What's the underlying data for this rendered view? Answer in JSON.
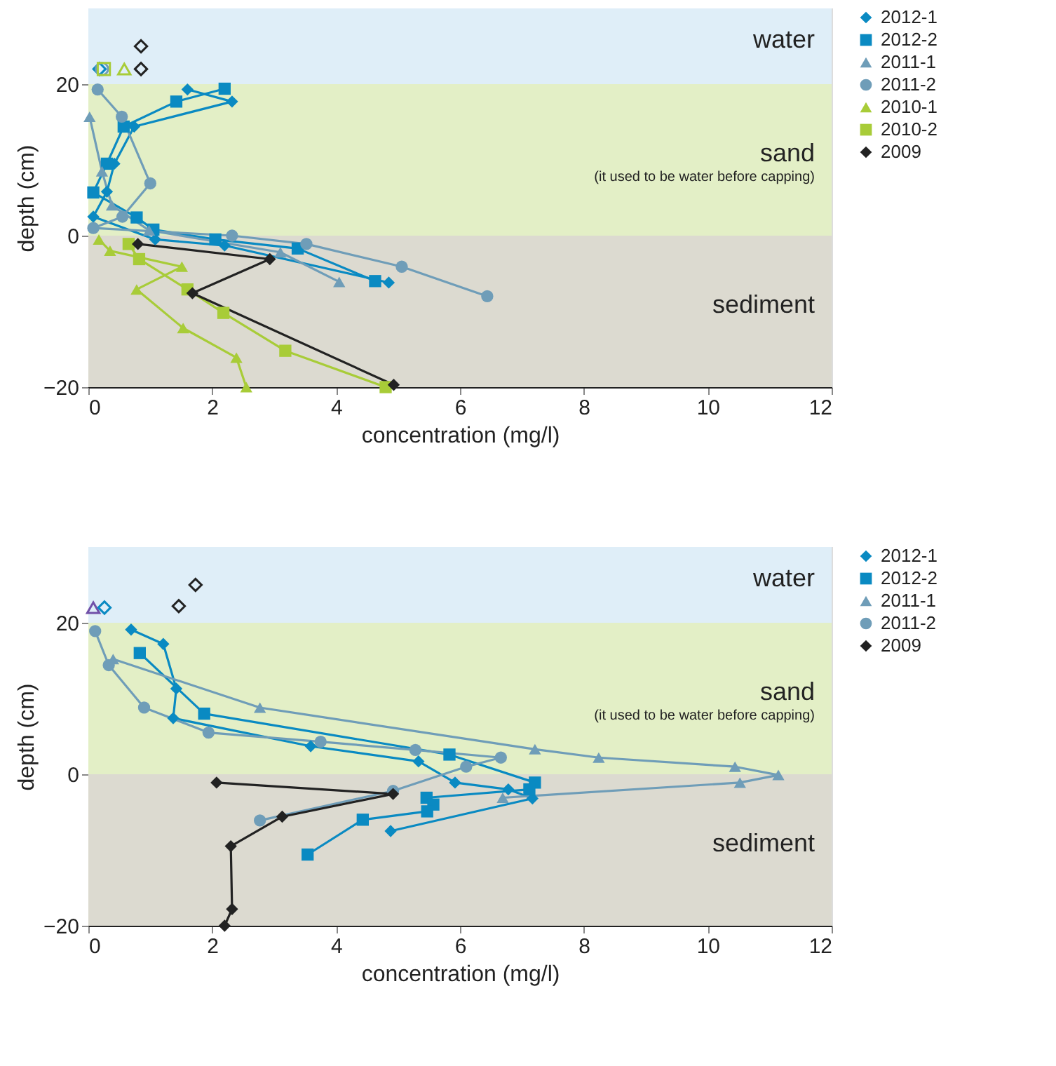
{
  "chart_data": [
    {
      "type": "line",
      "xlabel": "concentration (mg/l)",
      "ylabel": "depth (cm)",
      "xlim": [
        0,
        12
      ],
      "ylim": [
        -20,
        30
      ],
      "xticks": [
        0,
        2,
        4,
        6,
        8,
        10,
        12
      ],
      "yticks": [
        -20,
        0,
        20
      ],
      "legend": "right",
      "bands": [
        {
          "axis": "y",
          "from": 20,
          "to": 30,
          "label": "water",
          "color": "#dfeef8"
        },
        {
          "axis": "y",
          "from": 0,
          "to": 20,
          "label": "sand",
          "color": "#e3efc6"
        },
        {
          "axis": "y",
          "from": -20,
          "to": 0,
          "label": "sediment",
          "color": "#dcdad0"
        }
      ],
      "annotations": [
        "(it used to be water before capping)"
      ],
      "series": [
        {
          "name": "2012-1",
          "color": "#0a8ac2",
          "marker": "diamond",
          "x": [
            1.6,
            2.32,
            0.74,
            0.42,
            0.3,
            0.08,
            1.08,
            2.2,
            4.85
          ],
          "values": [
            19.3,
            17.7,
            14.4,
            9.5,
            5.8,
            2.5,
            -0.5,
            -1.3,
            -6.2
          ]
        },
        {
          "name": "2012-2",
          "color": "#0a8ac2",
          "marker": "square",
          "x": [
            2.2,
            1.42,
            0.57,
            0.3,
            0.08,
            0.78,
            1.05,
            2.05,
            3.38,
            4.63
          ],
          "values": [
            19.4,
            17.7,
            14.4,
            9.5,
            5.7,
            2.4,
            0.8,
            -0.5,
            -1.7,
            -6
          ]
        },
        {
          "name": "2011-1",
          "color": "#6f9db8",
          "marker": "triangle",
          "x": [
            0.02,
            0.22,
            0.38,
            0.98,
            3.1,
            4.05
          ],
          "values": [
            15.7,
            8.5,
            4,
            0.7,
            -2.2,
            -6.1
          ]
        },
        {
          "name": "2011-2",
          "color": "#6f9db8",
          "marker": "circle",
          "x": [
            0.15,
            0.54,
            1,
            0.55,
            0.08,
            2.32,
            3.52,
            5.06,
            6.44
          ],
          "values": [
            19.3,
            15.7,
            6.9,
            2.5,
            1,
            0,
            -1.1,
            -4.1,
            -8
          ]
        },
        {
          "name": "2010-1",
          "color": "#a8cc38",
          "marker": "triangle",
          "x": [
            0.17,
            0.35,
            1.51,
            0.78,
            1.53,
            2.39,
            2.55
          ],
          "values": [
            -0.5,
            -2,
            -4.1,
            -7.1,
            -12.2,
            -16.1,
            -20
          ]
        },
        {
          "name": "2010-2",
          "color": "#a8cc38",
          "marker": "square",
          "x": [
            0.65,
            0.82,
            1.6,
            2.18,
            3.18,
            4.8
          ],
          "values": [
            -1.1,
            -3.1,
            -7.1,
            -10.2,
            -15.2,
            -20
          ]
        },
        {
          "name": "2009",
          "color": "#222222",
          "marker": "diamond",
          "x": [
            0.8,
            2.93,
            1.68,
            4.93
          ],
          "values": [
            -1.1,
            -3.1,
            -7.6,
            -19.7
          ]
        },
        {
          "type": "scatter",
          "color": "#0a8ac2",
          "marker": "diamond",
          "x": [
            0.18
          ],
          "values": [
            22
          ]
        },
        {
          "type": "scatter",
          "color": "#6f9db8",
          "marker": "circle",
          "x": [
            0.22
          ],
          "values": [
            22
          ]
        },
        {
          "type": "scatter",
          "color": "#a8cc38",
          "marker": "square",
          "x": [
            0.25
          ],
          "values": [
            22
          ]
        },
        {
          "type": "scatter",
          "color": "#a8cc38",
          "marker": "triangle",
          "x": [
            0.58
          ],
          "values": [
            22
          ]
        },
        {
          "type": "scatter",
          "color": "#222222",
          "marker": "diamond",
          "x": [
            0.85,
            0.85
          ],
          "values": [
            22,
            25
          ]
        }
      ]
    },
    {
      "type": "line",
      "xlabel": "concentration (mg/l)",
      "ylabel": "depth (cm)",
      "xlim": [
        0,
        12
      ],
      "ylim": [
        -20,
        30
      ],
      "xticks": [
        0,
        2,
        4,
        6,
        8,
        10,
        12
      ],
      "yticks": [
        -20,
        0,
        20
      ],
      "legend": "right",
      "bands": [
        {
          "axis": "y",
          "from": 20,
          "to": 30,
          "label": "water",
          "color": "#dfeef8"
        },
        {
          "axis": "y",
          "from": 0,
          "to": 20,
          "label": "sand",
          "color": "#e3efc6"
        },
        {
          "axis": "y",
          "from": -20,
          "to": 0,
          "label": "sediment",
          "color": "#dcdad0"
        }
      ],
      "annotations": [
        "(it used to be water before capping)"
      ],
      "series": [
        {
          "name": "2012-1",
          "color": "#0a8ac2",
          "marker": "diamond",
          "x": [
            0.69,
            1.21,
            1.42,
            1.37,
            3.59,
            5.33,
            5.92,
            6.78,
            7.17,
            4.88
          ],
          "values": [
            19.1,
            17.2,
            11.3,
            7.4,
            3.7,
            1.7,
            -1.1,
            -2,
            -3.2,
            -7.5
          ]
        },
        {
          "name": "2012-2",
          "color": "#0a8ac2",
          "marker": "square",
          "x": [
            0.83,
            1.87,
            5.83,
            7.21,
            7.12,
            5.46,
            5.57,
            5.47,
            4.43,
            3.54
          ],
          "values": [
            16,
            8,
            2.6,
            -1.1,
            -2,
            -3.1,
            -4,
            -4.9,
            -6,
            -10.6
          ]
        },
        {
          "name": "2011-1",
          "color": "#6f9db8",
          "marker": "triangle",
          "x": [
            0.4,
            2.77,
            7.21,
            8.24,
            10.44,
            11.14,
            10.52,
            6.69
          ],
          "values": [
            15.2,
            8.8,
            3.3,
            2.2,
            1,
            -0.1,
            -1.1,
            -3.1
          ]
        },
        {
          "name": "2011-2",
          "color": "#6f9db8",
          "marker": "circle",
          "x": [
            0.11,
            0.33,
            0.9,
            1.94,
            3.75,
            5.28,
            6.66,
            6.1,
            4.92,
            2.77
          ],
          "values": [
            18.9,
            14.4,
            8.8,
            5.5,
            4.3,
            3.2,
            2.2,
            1,
            -2.2,
            -6.1
          ]
        },
        {
          "name": "2009",
          "color": "#222222",
          "marker": "diamond",
          "x": [
            2.07,
            4.92,
            3.13,
            2.3,
            2.32,
            2.2
          ],
          "values": [
            -1.1,
            -2.6,
            -5.6,
            -9.5,
            -17.8,
            -20
          ]
        },
        {
          "type": "scatter",
          "color": "#7050a8",
          "marker": "triangle",
          "x": [
            0.08
          ],
          "values": [
            22
          ]
        },
        {
          "type": "scatter",
          "color": "#0a8ac2",
          "marker": "diamond",
          "x": [
            0.26
          ],
          "values": [
            22
          ]
        },
        {
          "type": "scatter",
          "color": "#222222",
          "marker": "diamond",
          "x": [
            1.46,
            1.73
          ],
          "values": [
            22.2,
            25
          ]
        }
      ]
    }
  ]
}
